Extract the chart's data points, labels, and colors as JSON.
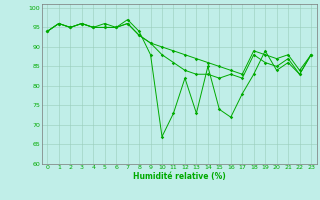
{
  "title": "",
  "xlabel": "Humidité relative (%)",
  "ylabel": "",
  "background_color": "#c0eee8",
  "grid_color": "#99ccbb",
  "line_color": "#00aa00",
  "marker_color": "#00aa00",
  "ylim": [
    60,
    101
  ],
  "xlim": [
    -0.5,
    23.5
  ],
  "yticks": [
    60,
    65,
    70,
    75,
    80,
    85,
    90,
    95,
    100
  ],
  "xticks": [
    0,
    1,
    2,
    3,
    4,
    5,
    6,
    7,
    8,
    9,
    10,
    11,
    12,
    13,
    14,
    15,
    16,
    17,
    18,
    19,
    20,
    21,
    22,
    23
  ],
  "series": [
    [
      94,
      96,
      95,
      96,
      95,
      96,
      95,
      97,
      94,
      88,
      67,
      73,
      82,
      73,
      85,
      74,
      72,
      78,
      83,
      89,
      84,
      86,
      83,
      88
    ],
    [
      94,
      96,
      95,
      96,
      95,
      95,
      95,
      96,
      93,
      91,
      88,
      86,
      84,
      83,
      83,
      82,
      83,
      82,
      88,
      86,
      85,
      87,
      83,
      88
    ],
    [
      94,
      96,
      95,
      96,
      95,
      95,
      95,
      96,
      93,
      91,
      90,
      89,
      88,
      87,
      86,
      85,
      84,
      83,
      89,
      88,
      87,
      88,
      84,
      88
    ]
  ]
}
